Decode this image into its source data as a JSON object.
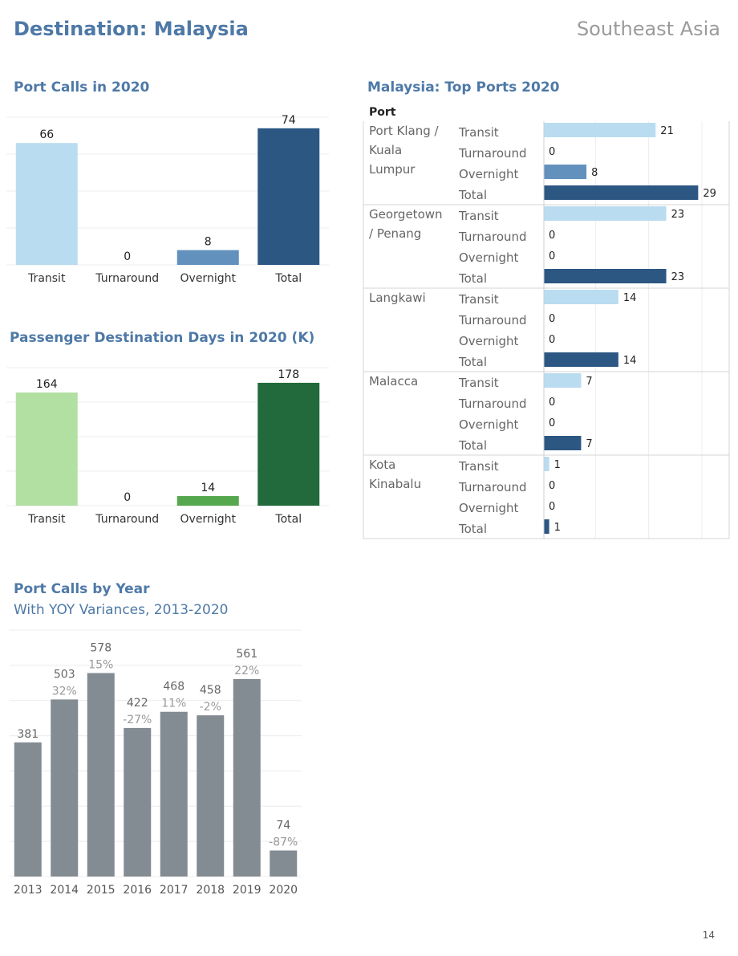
{
  "header": {
    "title": "Destination: Malaysia",
    "region": "Southeast Asia"
  },
  "page_number": "14",
  "colors": {
    "port_calls": {
      "Transit": "#b9dcf1",
      "Turnaround": "#b9dcf1",
      "Overnight": "#6391bd",
      "Total": "#2c5783"
    },
    "passenger_days": {
      "Transit": "#b2e0a3",
      "Turnaround": "#b2e0a3",
      "Overnight": "#56a84f",
      "Total": "#226a3c"
    },
    "by_year": "#838b93",
    "title": "#4e79a7"
  },
  "chart_data": [
    {
      "id": "port_calls_2020",
      "type": "bar",
      "title": "Port Calls in 2020",
      "categories": [
        "Transit",
        "Turnaround",
        "Overnight",
        "Total"
      ],
      "values": [
        66,
        0,
        8,
        74
      ],
      "ylim": [
        0,
        80
      ],
      "grid": true
    },
    {
      "id": "passenger_days_2020",
      "type": "bar",
      "title": "Passenger Destination Days in 2020 (K)",
      "categories": [
        "Transit",
        "Turnaround",
        "Overnight",
        "Total"
      ],
      "values": [
        164,
        0,
        14,
        178
      ],
      "ylim": [
        0,
        200
      ],
      "grid": true
    },
    {
      "id": "top_ports_2020",
      "type": "bar",
      "orientation": "horizontal",
      "title": "Malaysia: Top Ports 2020",
      "column_header": "Port",
      "measures": [
        "Transit",
        "Turnaround",
        "Overnight",
        "Total"
      ],
      "ports": [
        {
          "name_lines": [
            "Port Klang /",
            "Kuala",
            "Lumpur"
          ],
          "values": [
            21,
            0,
            8,
            29
          ]
        },
        {
          "name_lines": [
            "Georgetown",
            "/ Penang"
          ],
          "values": [
            23,
            0,
            0,
            23
          ]
        },
        {
          "name_lines": [
            "Langkawi"
          ],
          "values": [
            14,
            0,
            0,
            14
          ]
        },
        {
          "name_lines": [
            "Malacca"
          ],
          "values": [
            7,
            0,
            0,
            7
          ]
        },
        {
          "name_lines": [
            "Kota",
            "Kinabalu"
          ],
          "values": [
            1,
            0,
            0,
            1
          ]
        }
      ],
      "xlim": [
        0,
        30
      ],
      "grid": true
    },
    {
      "id": "port_calls_by_year",
      "type": "bar",
      "title": "Port Calls by Year",
      "subtitle": "With YOY Variances, 2013-2020",
      "categories": [
        "2013",
        "2014",
        "2015",
        "2016",
        "2017",
        "2018",
        "2019",
        "2020"
      ],
      "values": [
        381,
        503,
        578,
        422,
        468,
        458,
        561,
        74
      ],
      "yoy": [
        "",
        "32%",
        "15%",
        "-27%",
        "11%",
        "-2%",
        "22%",
        "-87%"
      ],
      "ylim": [
        0,
        700
      ],
      "grid": true
    }
  ]
}
